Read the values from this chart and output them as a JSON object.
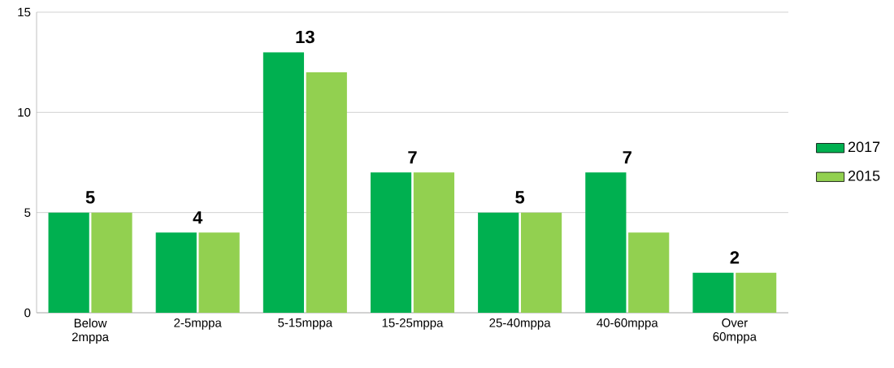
{
  "chart_data": {
    "type": "bar",
    "categories": [
      "Below 2mppa",
      "2-5mppa",
      "5-15mppa",
      "15-25mppa",
      "25-40mppa",
      "40-60mppa",
      "Over 60mppa"
    ],
    "series": [
      {
        "name": "2017",
        "color": "#00b050",
        "values": [
          5,
          4,
          13,
          7,
          5,
          7,
          2
        ],
        "value_labels": [
          "5",
          "4",
          "13",
          "7",
          "5",
          "7",
          "2"
        ]
      },
      {
        "name": "2015",
        "color": "#92d050",
        "values": [
          5,
          4,
          12,
          7,
          5,
          4,
          2
        ]
      }
    ],
    "ylim": [
      0,
      15
    ],
    "yticks": [
      0,
      5,
      10,
      15
    ],
    "grid": "y",
    "legend": "right"
  }
}
